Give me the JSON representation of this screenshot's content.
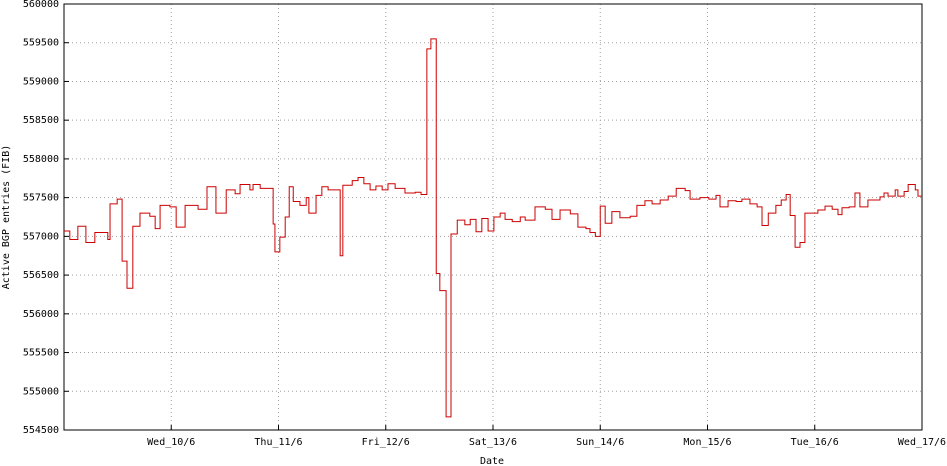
{
  "chart_data": {
    "type": "line",
    "step": true,
    "x_label": "Date",
    "y_label": "Active BGP entries (FIB)",
    "xlim": [
      0,
      192
    ],
    "xticks": [
      {
        "value": 24,
        "label": "Wed_10/6"
      },
      {
        "value": 48,
        "label": "Thu_11/6"
      },
      {
        "value": 72,
        "label": "Fri_12/6"
      },
      {
        "value": 96,
        "label": "Sat_13/6"
      },
      {
        "value": 120,
        "label": "Sun_14/6"
      },
      {
        "value": 144,
        "label": "Mon_15/6"
      },
      {
        "value": 168,
        "label": "Tue_16/6"
      },
      {
        "value": 192,
        "label": "Wed_17/6"
      }
    ],
    "ylim": [
      554500,
      560000
    ],
    "yticks": [
      554500,
      555000,
      555500,
      556000,
      556500,
      557000,
      557500,
      558000,
      558500,
      559000,
      559500,
      560000
    ],
    "grid": true,
    "series": [
      {
        "color": "#cc0000",
        "x": [
          0,
          1.3,
          3.1,
          4.9,
          6.9,
          9.8,
          10.3,
          11.9,
          13.0,
          14.1,
          15.4,
          17.0,
          19.2,
          20.4,
          21.5,
          23.7,
          25.1,
          27.1,
          30.0,
          32.0,
          34.0,
          36.3,
          38.3,
          39.4,
          41.6,
          42.3,
          43.9,
          45.7,
          46.8,
          47.2,
          48.3,
          49.5,
          50.4,
          51.3,
          52.8,
          54.2,
          54.8,
          56.4,
          57.7,
          59.1,
          61.3,
          61.8,
          62.4,
          64.5,
          65.8,
          67.1,
          68.5,
          69.8,
          71.2,
          72.5,
          74.1,
          76.3,
          78.6,
          79.9,
          81.2,
          82.1,
          83.3,
          84.1,
          85.5,
          86.6,
          88.0,
          89.7,
          90.9,
          92.2,
          93.5,
          94.9,
          96.2,
          97.6,
          98.7,
          100.3,
          102.1,
          103.2,
          105.4,
          107.7,
          109.2,
          111.0,
          113.3,
          115.0,
          116.8,
          117.7,
          118.9,
          120.0,
          121.1,
          122.6,
          124.4,
          126.7,
          128.2,
          130.0,
          131.6,
          133.4,
          135.2,
          137.0,
          139.0,
          140.1,
          142.3,
          144.3,
          145.9,
          146.8,
          148.6,
          150.4,
          151.7,
          153.5,
          155.1,
          156.2,
          157.6,
          159.3,
          160.5,
          161.6,
          162.5,
          163.6,
          164.7,
          165.8,
          167.4,
          168.7,
          170.3,
          171.9,
          173.2,
          174.1,
          175.7,
          177.0,
          178.1,
          179.9,
          182.6,
          183.5,
          184.4,
          186.0,
          186.6,
          188.0,
          188.9,
          190.5,
          191.1
        ],
        "values": [
          557070,
          556960,
          557130,
          556920,
          557050,
          556960,
          557420,
          557480,
          556680,
          556330,
          557130,
          557300,
          557260,
          557100,
          557400,
          557380,
          557120,
          557400,
          557350,
          557640,
          557300,
          557600,
          557550,
          557670,
          557600,
          557670,
          557620,
          557620,
          557160,
          556800,
          556990,
          557250,
          557640,
          557450,
          557400,
          557500,
          557300,
          557530,
          557640,
          557600,
          557600,
          556750,
          557660,
          557720,
          557760,
          557680,
          557600,
          557650,
          557600,
          557680,
          557620,
          557560,
          557570,
          557540,
          559420,
          559550,
          556520,
          556300,
          554670,
          557030,
          557210,
          557150,
          557220,
          557060,
          557230,
          557070,
          557250,
          557300,
          557220,
          557190,
          557250,
          557210,
          557380,
          557350,
          557220,
          557340,
          557290,
          557120,
          557100,
          557050,
          557000,
          557390,
          557170,
          557320,
          557240,
          557260,
          557400,
          557460,
          557420,
          557470,
          557520,
          557620,
          557590,
          557480,
          557500,
          557480,
          557530,
          557380,
          557460,
          557450,
          557480,
          557420,
          557380,
          557140,
          557300,
          557400,
          557470,
          557540,
          557270,
          556860,
          556920,
          557300,
          557300,
          557340,
          557390,
          557350,
          557280,
          557370,
          557380,
          557560,
          557380,
          557470,
          557510,
          557560,
          557520,
          557600,
          557520,
          557580,
          557670,
          557600,
          557520
        ]
      }
    ]
  }
}
